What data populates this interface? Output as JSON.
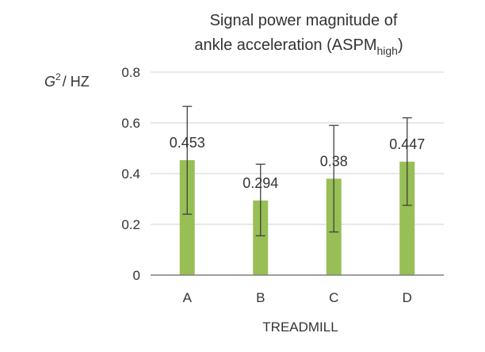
{
  "chart_data": {
    "type": "bar",
    "title_line1": "Signal power magnitude of",
    "title_line2_main": "ankle acceleration (ASPM",
    "title_line2_sub": "high",
    "title_line2_end": ")",
    "ylabel_main": "G",
    "ylabel_sup": "2",
    "ylabel_rest": "/ HZ",
    "xlabel": "TREADMILL",
    "categories": [
      "A",
      "B",
      "C",
      "D"
    ],
    "values": [
      0.453,
      0.294,
      0.38,
      0.447
    ],
    "value_labels": [
      "0.453",
      "0.294",
      "0.38",
      "0.447"
    ],
    "error_low": [
      0.24,
      0.155,
      0.17,
      0.275
    ],
    "error_high": [
      0.665,
      0.437,
      0.59,
      0.62
    ],
    "ylim": [
      0,
      0.8
    ],
    "yticks": [
      0,
      0.2,
      0.4,
      0.6,
      0.8
    ],
    "ytick_labels": [
      "0",
      "0.2",
      "0.4",
      "0.6",
      "0.8"
    ],
    "grid": true,
    "colors": {
      "bar": "#97bf55",
      "grid": "#d9d9d9",
      "axis": "#7f7f7f",
      "error": "#404040"
    }
  }
}
